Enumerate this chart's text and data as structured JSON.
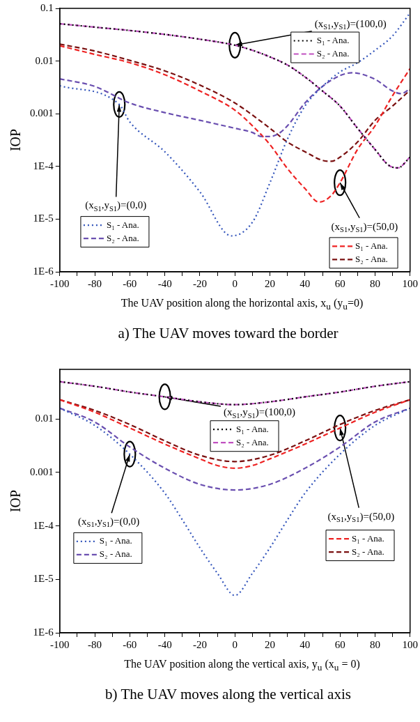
{
  "chart_data": [
    {
      "type": "line",
      "title": "a) The UAV moves toward the border",
      "xlabel": "The UAV position along the horizontal axis, x$_{u}$ (y$_{u}$=0)",
      "ylabel": "IOP",
      "log": "y",
      "legend": "bottom right",
      "xlim": [
        -100,
        100
      ],
      "ylim": [
        1e-06,
        0.1
      ],
      "xticks": [
        -100,
        {
          "value": -90,
          "label": null
        },
        -80,
        {
          "value": -70,
          "label": null
        },
        -60,
        {
          "value": -50,
          "label": null
        },
        -40,
        {
          "value": -30,
          "label": null
        },
        -20,
        {
          "value": -10,
          "label": null
        },
        0,
        {
          "value": 10,
          "label": null
        },
        20,
        {
          "value": 30,
          "label": null
        },
        40,
        {
          "value": 50,
          "label": null
        },
        60,
        {
          "value": 70,
          "label": null
        },
        80,
        {
          "value": 90,
          "label": null
        },
        100
      ],
      "yticks": [
        {
          "value": 1e-06,
          "label": "1E-6"
        },
        {
          "value": 1e-05,
          "label": "1E-5"
        },
        {
          "value": 0.0001,
          "label": "1E-4"
        },
        0.001,
        0.01,
        0.1
      ],
      "annotations": [
        {
          "text": "(x$_{S1}$,y$_{S1}$)=(0,0)",
          "x": -66,
          "y": 0.0015
        },
        {
          "text": "(x$_{S1}$,y$_{S1}$)=(100,0)",
          "x": 0,
          "y": 0.02
        },
        {
          "text": "(x$_{S1}$,y$_{S1}$)=(50,0)",
          "x": 60,
          "y": 4.9e-05
        }
      ],
      "series": [
        {
          "name": "S₁ - Ana.",
          "color": "#3355bb",
          "line_style": "dotted",
          "x": [
            -100,
            -66,
            -60,
            -40,
            -20,
            -2,
            10,
            20,
            30,
            40,
            50,
            60,
            70,
            80,
            90,
            100
          ],
          "values": [
            0.0034,
            0.0015,
            0.0007,
            0.00019,
            3.3e-05,
            4.8e-06,
            8.7e-06,
            4.9e-05,
            0.00033,
            0.0014,
            0.0033,
            0.0062,
            0.0093,
            0.016,
            0.03,
            0.082
          ]
        },
        {
          "name": "S₂ - Ana.",
          "color": "#6a4fb0",
          "line_style": "dashed",
          "x": [
            -100,
            -80,
            -60,
            -40,
            -20,
            0,
            10,
            15,
            20,
            25,
            30,
            40,
            50,
            60,
            67,
            80,
            90,
            95,
            100
          ],
          "values": [
            0.0046,
            0.0033,
            0.0016,
            0.00105,
            0.00075,
            0.00053,
            0.00044,
            0.00037,
            0.00037,
            0.00042,
            0.00059,
            0.0016,
            0.0033,
            0.0053,
            0.006,
            0.0045,
            0.0027,
            0.0024,
            0.003
          ]
        },
        {
          "name": "S₁ - Ana.",
          "color": "#000000",
          "line_style": "dotted",
          "x": [
            -100,
            -80,
            -60,
            -40,
            -20,
            0,
            10,
            20,
            30,
            40,
            50,
            60,
            70,
            80,
            88,
            93,
            100
          ],
          "values": [
            0.051,
            0.044,
            0.038,
            0.032,
            0.026,
            0.02,
            0.016,
            0.012,
            0.0084,
            0.005,
            0.0027,
            0.0014,
            0.00053,
            0.00021,
            0.000104,
            9.4e-05,
            0.00015
          ]
        },
        {
          "name": "S₂ - Ana.",
          "color": "#c050c0",
          "line_style": "dashed",
          "x": [
            -100,
            -80,
            -60,
            -40,
            -20,
            0,
            10,
            20,
            30,
            40,
            50,
            60,
            70,
            80,
            88,
            93,
            100
          ],
          "values": [
            0.051,
            0.044,
            0.038,
            0.032,
            0.026,
            0.02,
            0.016,
            0.012,
            0.0084,
            0.005,
            0.0027,
            0.0014,
            0.00053,
            0.00021,
            0.000104,
            9.4e-05,
            0.00015
          ]
        },
        {
          "name": "S₁ - Ana.",
          "color": "#ee2222",
          "line_style": "dashed",
          "x": [
            -100,
            -80,
            -60,
            -40,
            -20,
            0,
            10,
            20,
            30,
            40,
            48,
            55,
            60,
            70,
            80,
            90,
            100
          ],
          "values": [
            0.0195,
            0.0134,
            0.0093,
            0.0055,
            0.0027,
            0.00117,
            0.00059,
            0.00026,
            9.1e-05,
            3.8e-05,
            2.1e-05,
            2.8e-05,
            4.9e-05,
            0.00021,
            0.00059,
            0.0022,
            0.0072
          ]
        },
        {
          "name": "S₂ - Ana.",
          "color": "#7a1010",
          "line_style": "dashed",
          "x": [
            -100,
            -80,
            -60,
            -40,
            -20,
            0,
            20,
            30,
            40,
            50,
            55,
            60,
            70,
            80,
            90,
            100
          ],
          "values": [
            0.021,
            0.0155,
            0.0103,
            0.0065,
            0.0035,
            0.0016,
            0.00053,
            0.00029,
            0.00019,
            0.00013,
            0.000125,
            0.00015,
            0.00029,
            0.00075,
            0.0014,
            0.0028
          ]
        }
      ]
    },
    {
      "type": "line",
      "title": "b) The UAV moves along the vertical axis",
      "xlabel": "The UAV position along the vertical axis, y$_{u}$ (x$_{u}$ = 0)",
      "ylabel": "IOP",
      "log": "y",
      "legend": "top left",
      "xlim": [
        -100,
        100
      ],
      "ylim": [
        1e-06,
        0.085
      ],
      "xticks": [
        -100,
        {
          "value": -90,
          "label": null
        },
        -80,
        {
          "value": -70,
          "label": null
        },
        -60,
        {
          "value": -50,
          "label": null
        },
        -40,
        {
          "value": -30,
          "label": null
        },
        -20,
        {
          "value": -10,
          "label": null
        },
        0,
        {
          "value": 10,
          "label": null
        },
        20,
        {
          "value": 30,
          "label": null
        },
        40,
        {
          "value": 50,
          "label": null
        },
        60,
        {
          "value": 70,
          "label": null
        },
        80,
        {
          "value": 90,
          "label": null
        },
        100
      ],
      "yticks": [
        {
          "value": 1e-06,
          "label": "1E-6"
        },
        {
          "value": 1e-05,
          "label": "1E-5"
        },
        {
          "value": 0.0001,
          "label": "1E-4"
        },
        0.001,
        0.01
      ],
      "annotations": [
        {
          "text": "(x$_{S1}$,y$_{S1}$)=(0,0)",
          "x": -60,
          "y": 0.0022
        },
        {
          "text": "(x$_{S1}$,y$_{S1}$)=(100,0)",
          "x": -40,
          "y": 0.026
        },
        {
          "text": "(x$_{S1}$,y$_{S1}$)=(50,0)",
          "x": 60,
          "y": 0.0068
        }
      ],
      "series": [
        {
          "name": "S₁ - Ana.",
          "color": "#3355bb",
          "line_style": "dotted",
          "x": [
            -100,
            -80,
            -60,
            -40,
            -30,
            -20,
            -10,
            0,
            10,
            20,
            30,
            40,
            60,
            80,
            100
          ],
          "values": [
            0.016,
            0.0076,
            0.0022,
            0.00041,
            0.00013,
            3.9e-05,
            1.3e-05,
            5e-06,
            1.3e-05,
            3.9e-05,
            0.00013,
            0.00041,
            0.0022,
            0.0076,
            0.016
          ]
        },
        {
          "name": "S₂ - Ana.",
          "color": "#6a4fb0",
          "line_style": "dashed",
          "x": [
            -100,
            -80,
            -60,
            -40,
            -20,
            0,
            20,
            40,
            60,
            80,
            100
          ],
          "values": [
            0.016,
            0.0088,
            0.003,
            0.0012,
            0.0006,
            0.00047,
            0.0006,
            0.0012,
            0.003,
            0.0088,
            0.016
          ]
        },
        {
          "name": "S₁ - Ana.",
          "color": "#000000",
          "line_style": "dotted",
          "x": [
            -100,
            -80,
            -60,
            -40,
            -20,
            0,
            20,
            40,
            60,
            80,
            100
          ],
          "values": [
            0.05,
            0.041,
            0.032,
            0.026,
            0.021,
            0.0186,
            0.021,
            0.026,
            0.032,
            0.041,
            0.05
          ]
        },
        {
          "name": "S₂ - Ana.",
          "color": "#c050c0",
          "line_style": "dashed",
          "x": [
            -100,
            -80,
            -60,
            -40,
            -20,
            0,
            20,
            40,
            60,
            80,
            100
          ],
          "values": [
            0.05,
            0.041,
            0.032,
            0.026,
            0.021,
            0.0186,
            0.021,
            0.026,
            0.032,
            0.041,
            0.05
          ]
        },
        {
          "name": "S₁ - Ana.",
          "color": "#ee2222",
          "line_style": "dashed",
          "x": [
            -100,
            -80,
            -60,
            -40,
            -20,
            -10,
            0,
            10,
            20,
            40,
            60,
            80,
            100
          ],
          "values": [
            0.023,
            0.0134,
            0.0068,
            0.0034,
            0.0018,
            0.00135,
            0.0012,
            0.00135,
            0.0018,
            0.0034,
            0.0068,
            0.0134,
            0.023
          ]
        },
        {
          "name": "S₂ - Ana.",
          "color": "#7a1010",
          "line_style": "dashed",
          "x": [
            -100,
            -80,
            -60,
            -40,
            -20,
            0,
            20,
            40,
            60,
            80,
            100
          ],
          "values": [
            0.023,
            0.0145,
            0.0079,
            0.0039,
            0.0021,
            0.0016,
            0.0021,
            0.0039,
            0.0079,
            0.0145,
            0.023
          ]
        }
      ]
    }
  ]
}
